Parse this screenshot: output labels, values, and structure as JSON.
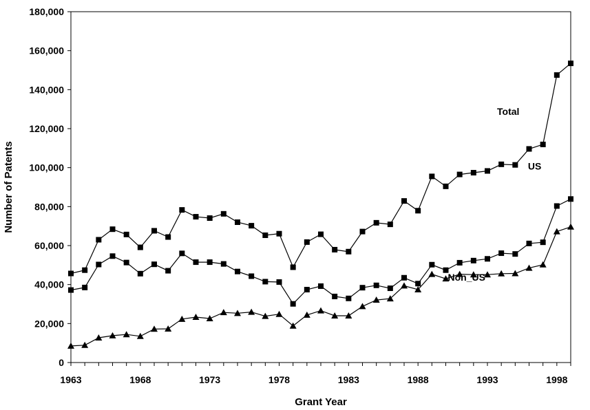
{
  "chart_data": {
    "type": "line",
    "xlabel": "Grant Year",
    "ylabel": "Number of Patents",
    "xlim": [
      1963,
      1999
    ],
    "ylim": [
      0,
      180000
    ],
    "x_ticks": [
      1963,
      1968,
      1973,
      1978,
      1983,
      1988,
      1993,
      1998
    ],
    "x_tick_labels": [
      "1963",
      "1968",
      "1973",
      "1978",
      "1983",
      "1988",
      "1993",
      "1998"
    ],
    "y_ticks": [
      0,
      20000,
      40000,
      60000,
      80000,
      100000,
      120000,
      140000,
      160000,
      180000
    ],
    "y_tick_labels": [
      "0",
      "20,000",
      "40,000",
      "60,000",
      "80,000",
      "100,000",
      "120,000",
      "140,000",
      "160,000",
      "180,000"
    ],
    "grid": false,
    "x": [
      1963,
      1964,
      1965,
      1966,
      1967,
      1968,
      1969,
      1970,
      1971,
      1972,
      1973,
      1974,
      1975,
      1976,
      1977,
      1978,
      1979,
      1980,
      1981,
      1982,
      1983,
      1984,
      1985,
      1986,
      1987,
      1988,
      1989,
      1990,
      1991,
      1992,
      1993,
      1994,
      1995,
      1996,
      1997,
      1998,
      1999
    ],
    "series": [
      {
        "name": "Total",
        "marker": "square",
        "color": "#000000",
        "values": [
          45700,
          47400,
          63000,
          68400,
          65700,
          59100,
          67600,
          64400,
          78300,
          74800,
          74100,
          76300,
          72000,
          70200,
          65300,
          66100,
          48900,
          61800,
          65800,
          57900,
          56900,
          67200,
          71700,
          70900,
          82900,
          77900,
          95500,
          90400,
          96500,
          97400,
          98300,
          101700,
          101400,
          109600,
          111900,
          147500,
          153500
        ]
      },
      {
        "name": "US",
        "marker": "square",
        "color": "#000000",
        "values": [
          37200,
          38500,
          50300,
          54600,
          51300,
          45600,
          50400,
          47100,
          56000,
          51500,
          51500,
          50600,
          46700,
          44300,
          41500,
          41300,
          30100,
          37400,
          39200,
          33900,
          32900,
          38400,
          39600,
          38100,
          43500,
          40500,
          50200,
          47400,
          51200,
          52300,
          53200,
          56100,
          55700,
          61100,
          61700,
          80300,
          83900
        ]
      },
      {
        "name": "Non_US",
        "marker": "triangle",
        "color": "#000000",
        "values": [
          8500,
          8900,
          12700,
          13800,
          14400,
          13500,
          17200,
          17300,
          22300,
          23300,
          22600,
          25700,
          25300,
          25900,
          23800,
          24800,
          18800,
          24400,
          26600,
          24000,
          24000,
          28800,
          32100,
          32800,
          39400,
          37400,
          45300,
          43000,
          45300,
          45100,
          45100,
          45600,
          45700,
          48500,
          50200,
          67200,
          69600
        ]
      }
    ]
  }
}
